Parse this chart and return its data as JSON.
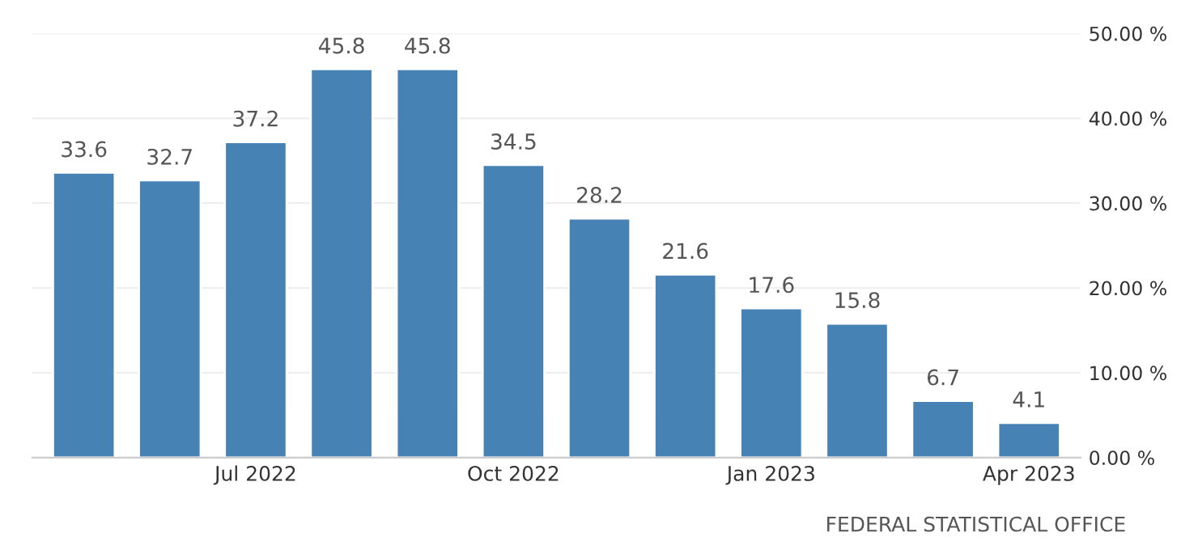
{
  "chart_data": {
    "type": "bar",
    "categories": [
      null,
      null,
      "Jul 2022",
      null,
      null,
      "Oct 2022",
      null,
      null,
      "Jan 2023",
      null,
      null,
      "Apr 2023"
    ],
    "values": [
      33.6,
      32.7,
      37.2,
      45.8,
      45.8,
      34.5,
      28.2,
      21.6,
      17.6,
      15.8,
      6.7,
      4.1
    ],
    "color": "#4682b4",
    "ylim": [
      0,
      50
    ],
    "yticks": [
      {
        "value": 0,
        "label": "0.00 %"
      },
      {
        "value": 10,
        "label": "10.00 %"
      },
      {
        "value": 20,
        "label": "20.00 %"
      },
      {
        "value": 30,
        "label": "30.00 %"
      },
      {
        "value": 40,
        "label": "40.00 %"
      },
      {
        "value": 50,
        "label": "50.00 %"
      }
    ],
    "grid": "y",
    "data_labels": true,
    "annotations": [
      "FEDERAL STATISTICAL OFFICE"
    ]
  }
}
